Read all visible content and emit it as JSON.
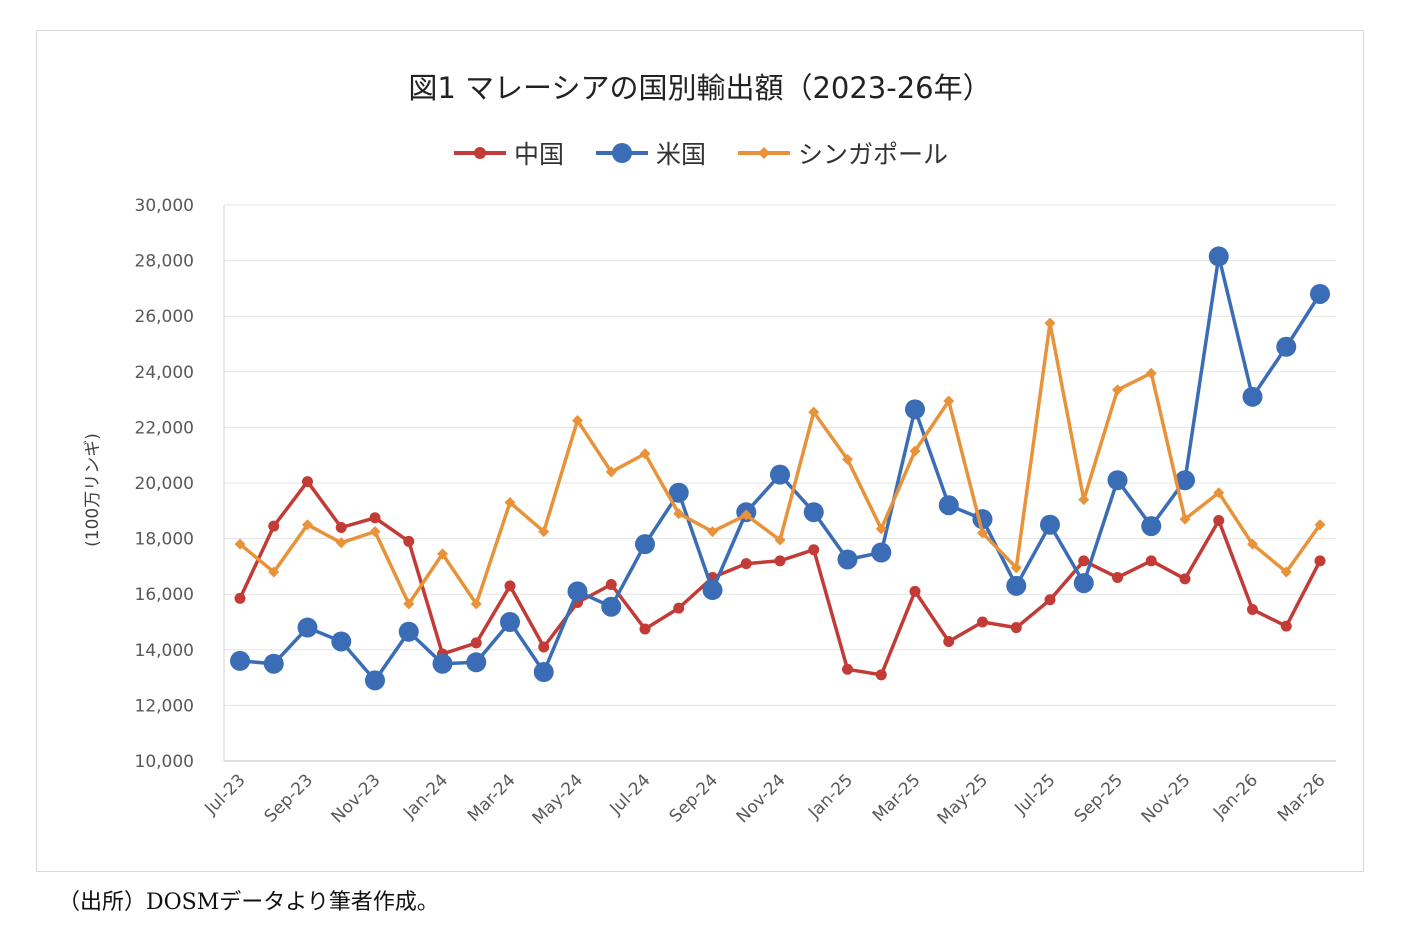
{
  "source_note": "（出所）DOSMデータより筆者作成。",
  "chart_data": {
    "type": "line",
    "title": "図1 マレーシアの国別輸出額（2023-26年）",
    "ylabel": "(100万リンギ)",
    "xlabel": "",
    "ylim": [
      10000,
      30000
    ],
    "yticks": [
      "10,000",
      "12,000",
      "14,000",
      "16,000",
      "18,000",
      "20,000",
      "22,000",
      "24,000",
      "26,000",
      "28,000",
      "30,000"
    ],
    "x_tick_labels": [
      "Jul-23",
      "Sep-23",
      "Nov-23",
      "Jan-24",
      "Mar-24",
      "May-24",
      "Jul-24",
      "Sep-24",
      "Nov-24",
      "Jan-25",
      "Mar-25",
      "May-25",
      "Jul-25",
      "Sep-25",
      "Nov-25",
      "Jan-26",
      "Mar-26"
    ],
    "categories": [
      "Jul-23",
      "Aug-23",
      "Sep-23",
      "Oct-23",
      "Nov-23",
      "Dec-23",
      "Jan-24",
      "Feb-24",
      "Mar-24",
      "Apr-24",
      "May-24",
      "Jun-24",
      "Jul-24",
      "Aug-24",
      "Sep-24",
      "Oct-24",
      "Nov-24",
      "Dec-24",
      "Jan-25",
      "Feb-25",
      "Mar-25",
      "Apr-25",
      "May-25",
      "Jun-25",
      "Jul-25",
      "Aug-25",
      "Sep-25",
      "Oct-25",
      "Nov-25",
      "Dec-25",
      "Jan-26",
      "Feb-26",
      "Mar-26"
    ],
    "legend_position": "top",
    "grid": true,
    "series": [
      {
        "name": "中国",
        "color": "#c23b36",
        "marker": "circle-small",
        "values": [
          15850,
          18450,
          20050,
          18400,
          18750,
          17900,
          13850,
          14250,
          16300,
          14100,
          15700,
          16350,
          14750,
          15500,
          16600,
          17100,
          17200,
          17600,
          13300,
          13100,
          16100,
          14300,
          15000,
          14800,
          15800,
          17200,
          16600,
          17200,
          16550,
          18650,
          15450,
          14850,
          17200
        ]
      },
      {
        "name": "米国",
        "color": "#3a6db5",
        "marker": "circle-large",
        "values": [
          13600,
          13500,
          14800,
          14300,
          12900,
          14650,
          13500,
          13550,
          15000,
          13200,
          16100,
          15550,
          17800,
          19650,
          16150,
          18950,
          20300,
          18950,
          17250,
          17500,
          22650,
          19200,
          18700,
          16300,
          18500,
          16400,
          20100,
          18450,
          20100,
          28150,
          23100,
          24900,
          26800
        ]
      },
      {
        "name": "シンガポール",
        "color": "#e8923a",
        "marker": "diamond",
        "values": [
          17800,
          16800,
          18500,
          17850,
          18250,
          15650,
          17450,
          15650,
          19300,
          18250,
          22250,
          20400,
          21050,
          18900,
          18250,
          18850,
          17950,
          22550,
          20850,
          18350,
          21150,
          22950,
          18200,
          16950,
          25750,
          19400,
          23350,
          23950,
          18700,
          19650,
          17800,
          16800,
          18500
        ]
      }
    ]
  }
}
